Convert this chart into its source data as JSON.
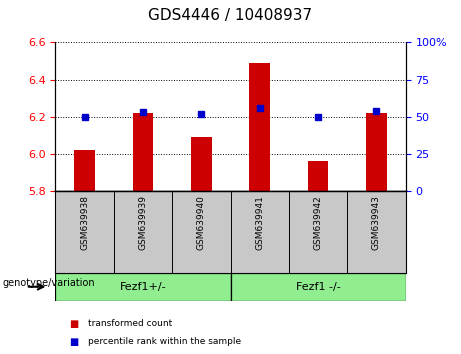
{
  "title": "GDS4446 / 10408937",
  "samples": [
    "GSM639938",
    "GSM639939",
    "GSM639940",
    "GSM639941",
    "GSM639942",
    "GSM639943"
  ],
  "bar_values": [
    6.02,
    6.22,
    6.09,
    6.49,
    5.96,
    6.22
  ],
  "percentile_values": [
    50,
    53,
    52,
    56,
    50,
    54
  ],
  "bar_bottom": 5.8,
  "ylim_left": [
    5.8,
    6.6
  ],
  "ylim_right": [
    0,
    100
  ],
  "yticks_left": [
    5.8,
    6.0,
    6.2,
    6.4,
    6.6
  ],
  "yticks_right": [
    0,
    25,
    50,
    75,
    100
  ],
  "bar_color": "#cc0000",
  "percentile_color": "#0000cc",
  "group1_label": "Fezf1+/-",
  "group2_label": "Fezf1 -/-",
  "group_color": "#90ee90",
  "group_header": "genotype/variation",
  "legend_items": [
    {
      "label": "transformed count",
      "color": "#cc0000"
    },
    {
      "label": "percentile rank within the sample",
      "color": "#0000cc"
    }
  ],
  "background_color": "#ffffff",
  "tick_label_area_bg": "#c8c8c8",
  "bar_width": 0.35
}
